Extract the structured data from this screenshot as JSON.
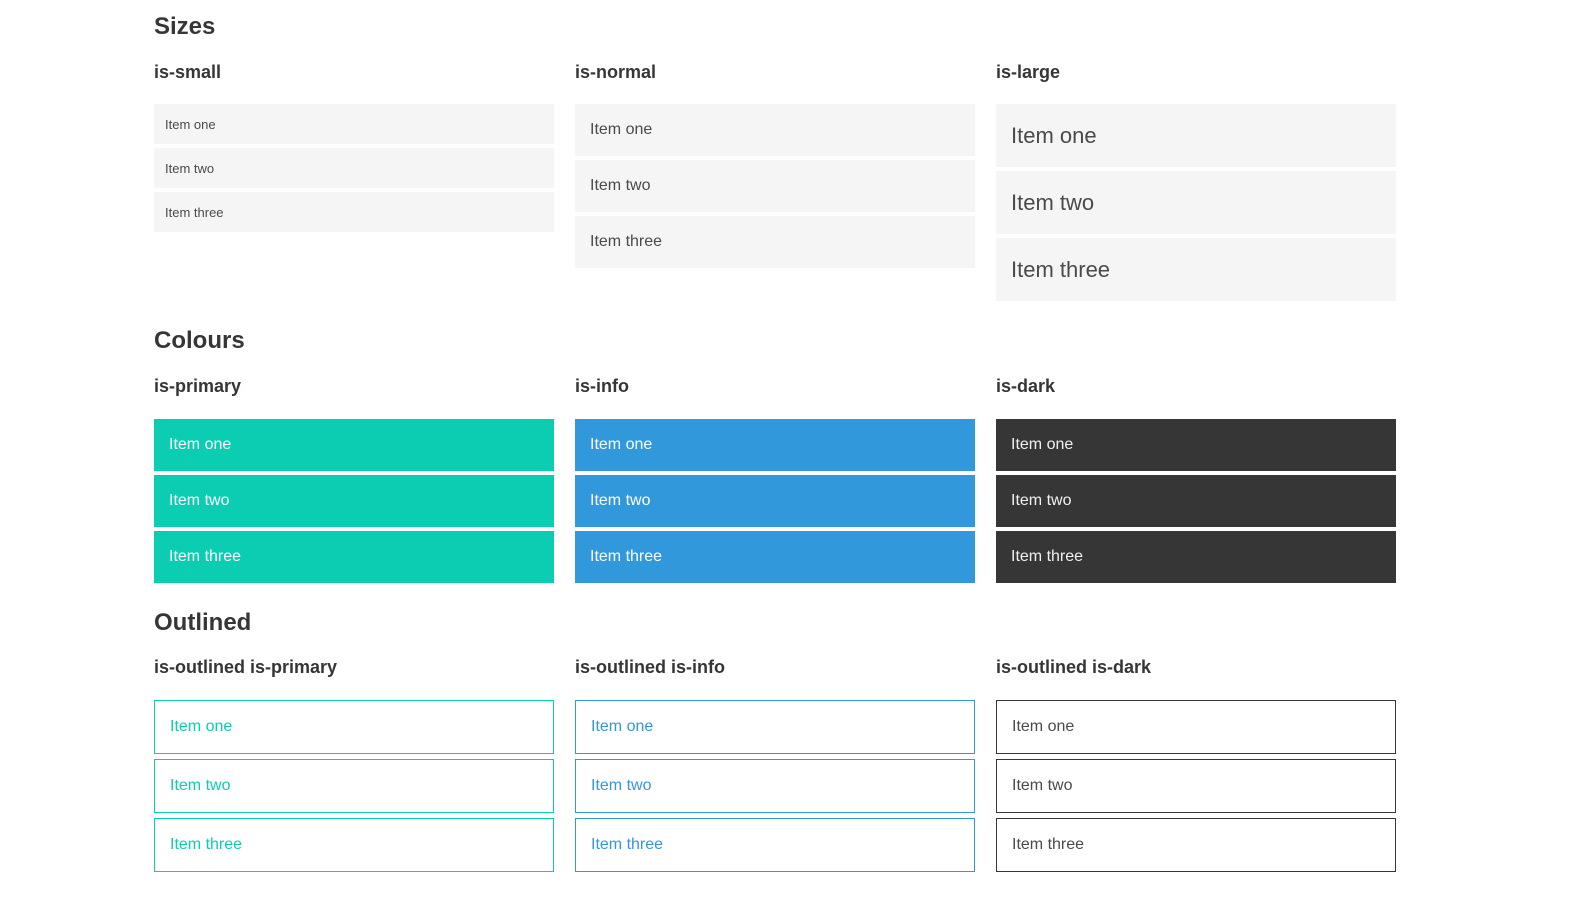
{
  "sections": [
    {
      "title": "Sizes",
      "groups": [
        {
          "label": "is-small",
          "items": [
            "Item one",
            "Item two",
            "Item three"
          ]
        },
        {
          "label": "is-normal",
          "items": [
            "Item one",
            "Item two",
            "Item three"
          ]
        },
        {
          "label": "is-large",
          "items": [
            "Item one",
            "Item two",
            "Item three"
          ]
        }
      ]
    },
    {
      "title": "Colours",
      "groups": [
        {
          "label": "is-primary",
          "items": [
            "Item one",
            "Item two",
            "Item three"
          ]
        },
        {
          "label": "is-info",
          "items": [
            "Item one",
            "Item two",
            "Item three"
          ]
        },
        {
          "label": "is-dark",
          "items": [
            "Item one",
            "Item two",
            "Item three"
          ]
        }
      ]
    },
    {
      "title": "Outlined",
      "groups": [
        {
          "label": "is-outlined is-primary",
          "items": [
            "Item one",
            "Item two",
            "Item three"
          ]
        },
        {
          "label": "is-outlined is-info",
          "items": [
            "Item one",
            "Item two",
            "Item three"
          ]
        },
        {
          "label": "is-outlined is-dark",
          "items": [
            "Item one",
            "Item two",
            "Item three"
          ]
        }
      ]
    }
  ],
  "colors": {
    "primary": "#0bcdb2",
    "info": "#3298dc",
    "dark": "#363636",
    "item_background": "#f5f5f5",
    "item_text": "#4a4a4a",
    "heading_text": "#363636",
    "light_text": "#ffffff",
    "dark_filled_text": "#f0f0f0"
  }
}
